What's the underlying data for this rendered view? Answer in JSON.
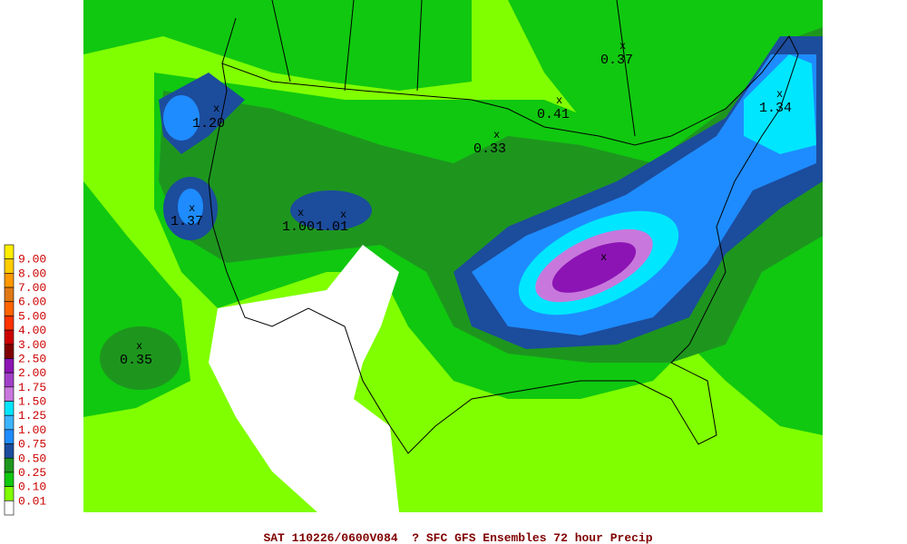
{
  "legend": {
    "levels": [
      "9.00",
      "8.00",
      "7.00",
      "6.00",
      "5.00",
      "4.00",
      "3.00",
      "2.50",
      "2.00",
      "1.75",
      "1.50",
      "1.25",
      "1.00",
      "0.75",
      "0.50",
      "0.25",
      "0.10",
      "0.01"
    ],
    "colors": [
      "#ffee00",
      "#ffcc00",
      "#ff9900",
      "#e07814",
      "#ff6400",
      "#ff3200",
      "#cc0000",
      "#800000",
      "#8c14b4",
      "#a040c8",
      "#c878dc",
      "#00e6ff",
      "#3cb4ff",
      "#1e8cff",
      "#1c4c9c",
      "#1e961e",
      "#10c810",
      "#80ff00",
      "#ffffff"
    ]
  },
  "maxima": [
    {
      "marker": "x",
      "value": "1.20"
    },
    {
      "marker": "x",
      "value": "1.37"
    },
    {
      "marker": "x",
      "value": "1.00"
    },
    {
      "marker": "x",
      "value": "1.01"
    },
    {
      "marker": "x",
      "value": "0.35"
    },
    {
      "marker": "x",
      "value": "0.33"
    },
    {
      "marker": "x",
      "value": "0.41"
    },
    {
      "marker": "x",
      "value": "0.37"
    },
    {
      "marker": "x",
      "value": "1.34"
    },
    {
      "marker": "x"
    }
  ],
  "footer": "SAT 110226/0600V084  ? SFC GFS Ensembles 72 hour Precip"
}
